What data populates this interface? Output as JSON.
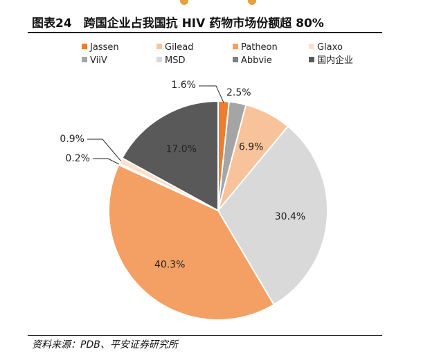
{
  "header": {
    "title": "图表24　跨国企业占我国抗 HIV 药物市场份额超 80%"
  },
  "footer": {
    "source": "资料来源：PDB、平安证券研究所"
  },
  "chart_data": {
    "type": "pie",
    "title": "",
    "legend_position": "top",
    "slices": [
      {
        "name": "Jassen",
        "value": 1.6,
        "label": "1.6%",
        "color": "#ed7d31"
      },
      {
        "name": "ViiV",
        "value": 2.5,
        "label": "2.5%",
        "color": "#a5a5a5"
      },
      {
        "name": "Gilead",
        "value": 6.9,
        "label": "6.9%",
        "color": "#f8c39a"
      },
      {
        "name": "MSD",
        "value": 30.4,
        "label": "30.4%",
        "color": "#d9d9d9"
      },
      {
        "name": "Patheon",
        "value": 40.3,
        "label": "40.3%",
        "color": "#f4a064"
      },
      {
        "name": "Abbvie",
        "value": 0.2,
        "label": "0.2%",
        "color": "#7f7f7f"
      },
      {
        "name": "Glaxo",
        "value": 0.9,
        "label": "0.9%",
        "color": "#fbe0cc"
      },
      {
        "name": "国内企业",
        "value": 17.0,
        "label": "17.0%",
        "color": "#595959"
      }
    ]
  }
}
